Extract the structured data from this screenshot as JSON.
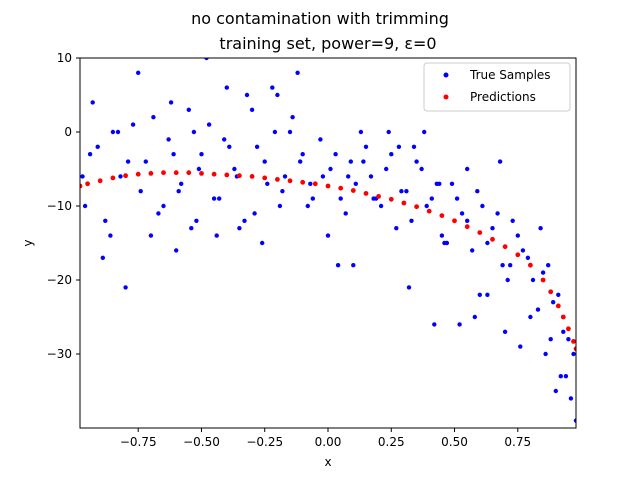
{
  "chart_data": {
    "type": "scatter",
    "title": "no contamination with trimming",
    "subtitle": "training set, power=9, ε=0",
    "xlabel": "x",
    "ylabel": "y",
    "xlim": [
      -0.98,
      0.98
    ],
    "ylim": [
      -40,
      10
    ],
    "xticks": [
      -0.75,
      -0.5,
      -0.25,
      0.0,
      0.25,
      0.5,
      0.75
    ],
    "xtick_labels": [
      "−0.75",
      "−0.50",
      "−0.25",
      "0.00",
      "0.25",
      "0.50",
      "0.75"
    ],
    "yticks": [
      -30,
      -20,
      -10,
      0,
      10
    ],
    "ytick_labels": [
      "−30",
      "−20",
      "−10",
      "0",
      "10"
    ],
    "grid": false,
    "legend_position": "top-right",
    "series": [
      {
        "name": "True Samples",
        "color": "#0000ff",
        "marker": "dot",
        "x": [
          -0.97,
          -0.93,
          -0.88,
          -0.85,
          -0.79,
          -0.74,
          -0.69,
          -0.65,
          -0.61,
          -0.58,
          -0.55,
          -0.51,
          -0.47,
          -0.43,
          -0.39,
          -0.36,
          -0.32,
          -0.29,
          -0.25,
          -0.21,
          -0.18,
          -0.14,
          -0.1,
          -0.07,
          -0.03,
          0.01,
          0.05,
          0.09,
          0.13,
          0.17,
          0.21,
          0.25,
          0.29,
          0.33,
          0.37,
          0.41,
          0.45,
          0.49,
          0.53,
          0.57,
          0.61,
          0.65,
          0.69,
          0.73,
          0.77,
          0.81,
          0.85,
          0.89,
          0.93,
          0.97,
          -0.96,
          -0.91,
          -0.86,
          -0.82,
          -0.77,
          -0.72,
          -0.67,
          -0.63,
          -0.59,
          -0.54,
          -0.5,
          -0.45,
          -0.41,
          -0.37,
          -0.33,
          -0.28,
          -0.24,
          -0.19,
          -0.15,
          -0.11,
          -0.06,
          -0.02,
          0.03,
          0.07,
          0.11,
          0.15,
          0.19,
          0.23,
          0.27,
          0.31,
          0.35,
          0.39,
          0.43,
          0.47,
          0.51,
          0.55,
          0.59,
          0.63,
          0.67,
          0.71,
          0.75,
          0.79,
          0.83,
          0.87,
          0.91,
          0.95,
          -0.89,
          -0.8,
          -0.7,
          -0.6,
          -0.52,
          -0.44,
          -0.35,
          -0.26,
          -0.17,
          -0.08,
          0.0,
          0.08,
          0.18,
          0.28,
          0.38,
          0.46,
          0.55,
          0.63,
          0.72,
          0.8,
          0.88,
          0.94,
          -0.94,
          -0.83,
          -0.75,
          -0.62,
          -0.48,
          -0.4,
          -0.3,
          -0.22,
          -0.12,
          0.04,
          0.14,
          0.24,
          0.34,
          0.44,
          0.52,
          0.6,
          0.68,
          0.76,
          0.84,
          0.92,
          0.96,
          -0.53,
          -0.2,
          0.1,
          0.32,
          0.42,
          0.58,
          0.7,
          0.86,
          0.9,
          0.98
        ],
        "y": [
          -6,
          4,
          -12,
          0,
          -4,
          -8,
          2,
          -10,
          -3,
          -7,
          3,
          -5,
          1,
          -9,
          -2,
          -6,
          5,
          -11,
          -4,
          0,
          -8,
          2,
          -3,
          -7,
          -1,
          -5,
          -9,
          -4,
          0,
          -6,
          -10,
          -3,
          -8,
          -12,
          -5,
          -9,
          -14,
          -7,
          -11,
          -16,
          -10,
          -13,
          -18,
          -12,
          -16,
          -20,
          -19,
          -23,
          -27,
          -30,
          -10,
          -2,
          -14,
          -6,
          1,
          -4,
          -11,
          -1,
          -8,
          -13,
          -3,
          -9,
          -1,
          -5,
          -12,
          -2,
          -7,
          -10,
          0,
          -4,
          -9,
          -6,
          -3,
          -11,
          -7,
          -2,
          -9,
          -5,
          -13,
          -8,
          -4,
          -10,
          -7,
          -15,
          -9,
          -12,
          -8,
          -15,
          -11,
          -20,
          -14,
          -17,
          -24,
          -18,
          -22,
          -28,
          -17,
          -21,
          -14,
          -16,
          -12,
          -14,
          -13,
          -15,
          -6,
          -10,
          -14,
          -6,
          -9,
          -2,
          0,
          -15,
          -5,
          -22,
          -18,
          -25,
          -28,
          -33,
          -3,
          0,
          8,
          4,
          10,
          6,
          3,
          6,
          8,
          -18,
          -4,
          0,
          -2,
          -7,
          -26,
          -22,
          -4,
          -29,
          -13,
          -33,
          -36,
          0,
          5,
          -18,
          -21,
          -26,
          -25,
          -27,
          -30,
          -35,
          -39
        ]
      },
      {
        "name": "Predictions",
        "color": "#ff0000",
        "marker": "dot",
        "x": [
          -0.98,
          -0.95,
          -0.9,
          -0.85,
          -0.8,
          -0.75,
          -0.7,
          -0.65,
          -0.6,
          -0.55,
          -0.5,
          -0.45,
          -0.4,
          -0.35,
          -0.3,
          -0.25,
          -0.2,
          -0.15,
          -0.1,
          -0.05,
          0.0,
          0.05,
          0.1,
          0.15,
          0.2,
          0.25,
          0.3,
          0.35,
          0.4,
          0.45,
          0.5,
          0.55,
          0.6,
          0.65,
          0.7,
          0.75,
          0.8,
          0.85,
          0.88,
          0.91,
          0.93,
          0.95,
          0.97,
          0.98
        ],
        "y": [
          -7.3,
          -7.0,
          -6.6,
          -6.2,
          -5.9,
          -5.7,
          -5.6,
          -5.5,
          -5.5,
          -5.5,
          -5.6,
          -5.7,
          -5.8,
          -5.9,
          -6.0,
          -6.2,
          -6.4,
          -6.6,
          -6.8,
          -7.0,
          -7.3,
          -7.6,
          -7.9,
          -8.3,
          -8.7,
          -9.1,
          -9.6,
          -10.1,
          -10.7,
          -11.3,
          -12.0,
          -12.8,
          -13.6,
          -14.5,
          -15.5,
          -16.6,
          -18.0,
          -20.0,
          -21.6,
          -23.5,
          -25.0,
          -26.6,
          -28.3,
          -29.3
        ]
      }
    ]
  }
}
